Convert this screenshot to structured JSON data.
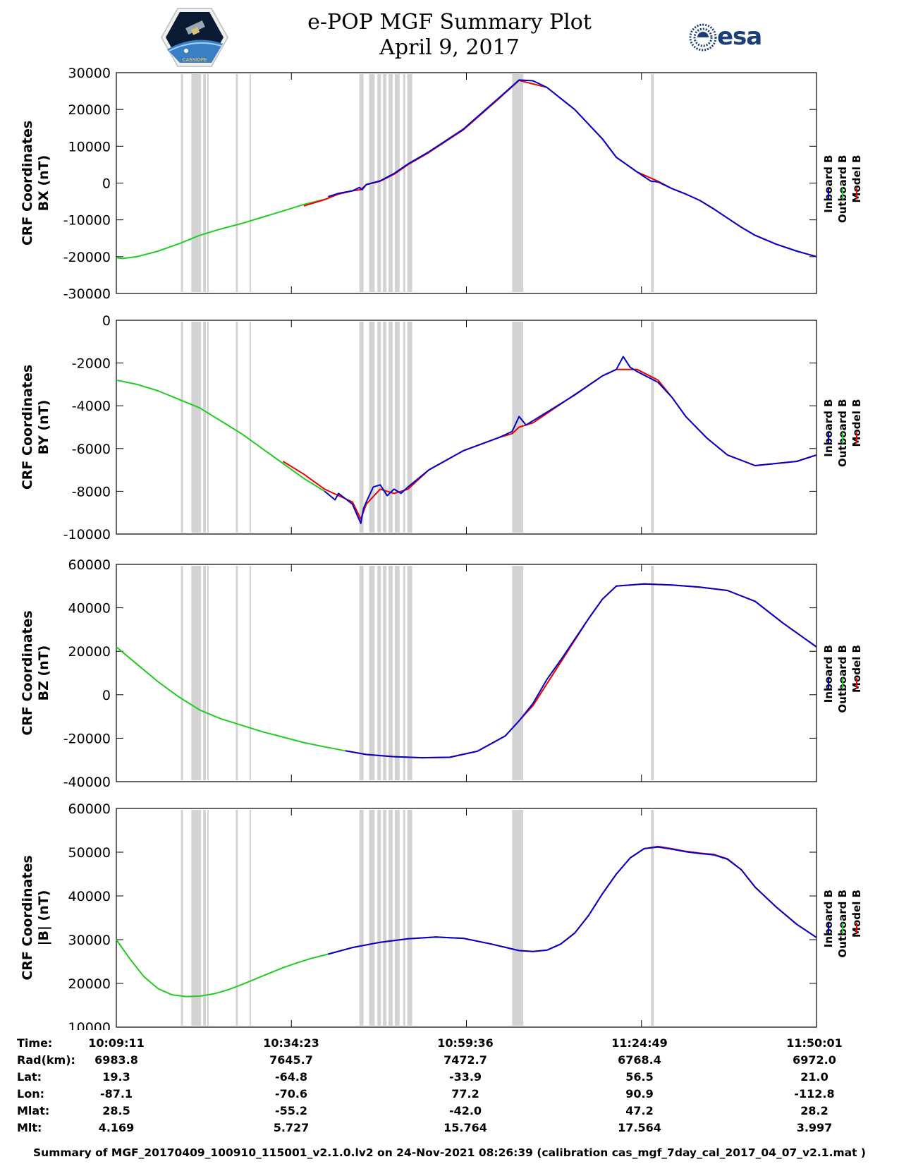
{
  "header": {
    "title_line1": "e-POP MGF Summary Plot",
    "title_line2": "April 9, 2017",
    "logo_left_text": "CASSIOPE",
    "logo_right_text": "esa"
  },
  "legend": {
    "labels": [
      "Inboard B",
      "Outboard B",
      "Model B"
    ],
    "colors": [
      "#0000cc",
      "#22cc22",
      "#ee0000"
    ]
  },
  "shaded_intervals_min": [
    [
      9.3,
      9.6
    ],
    [
      10.8,
      12.2
    ],
    [
      12.5,
      12.9
    ],
    [
      13.1,
      13.3
    ],
    [
      17.2,
      17.5
    ],
    [
      19.2,
      19.3
    ],
    [
      35.0,
      35.6
    ],
    [
      36.4,
      37.2
    ],
    [
      37.6,
      38.1
    ],
    [
      38.4,
      38.9
    ],
    [
      39.2,
      39.8
    ],
    [
      40.1,
      40.8
    ],
    [
      41.3,
      41.6
    ],
    [
      41.9,
      42.6
    ],
    [
      57.0,
      58.6
    ],
    [
      77.0,
      77.4
    ]
  ],
  "chart_data": [
    {
      "type": "line",
      "ylabel_line1": "CRF Coordinates",
      "ylabel_line2": "BX (nT)",
      "ylim": [
        -30000,
        30000
      ],
      "yticks": [
        30000,
        20000,
        10000,
        0,
        -10000,
        -20000,
        -30000
      ],
      "ytick_labels": [
        "30000",
        "20000",
        "10000",
        "0",
        "-10000",
        "-20000",
        "-30000"
      ],
      "xlim_min": [
        0,
        100.83
      ],
      "series": [
        {
          "name": "Outboard B",
          "color": "#22cc22",
          "x": [
            0,
            1,
            3,
            6,
            9,
            12,
            15,
            18,
            21,
            24,
            27,
            30.5
          ],
          "y": [
            -20300,
            -20500,
            -20000,
            -18500,
            -16500,
            -14200,
            -12500,
            -11000,
            -9300,
            -7600,
            -5800,
            -4200
          ]
        },
        {
          "name": "Model B",
          "color": "#ee0000",
          "x": [
            27,
            30,
            32,
            34,
            35.2,
            36,
            38,
            40,
            42,
            45,
            50,
            55,
            58,
            62,
            66,
            70,
            72,
            75,
            78,
            80,
            82,
            84,
            86,
            88,
            90,
            92,
            95,
            98,
            100.83
          ],
          "y": [
            -6200,
            -4500,
            -3000,
            -2100,
            -1800,
            -400,
            500,
            2400,
            5000,
            8300,
            14500,
            22800,
            27900,
            26000,
            20000,
            12000,
            7000,
            3000,
            500,
            -1500,
            -3000,
            -4700,
            -7000,
            -9500,
            -12000,
            -14200,
            -16600,
            -18500,
            -20000
          ]
        },
        {
          "name": "Inboard B",
          "color": "#0000cc",
          "x": [
            30.5,
            32,
            34,
            35,
            35.4,
            36,
            38,
            40,
            42,
            45,
            50,
            55,
            58,
            60,
            62,
            66,
            70,
            72,
            75,
            77,
            78,
            80,
            82,
            84,
            86,
            88,
            90,
            92,
            95,
            98,
            100.83
          ],
          "y": [
            -3700,
            -2800,
            -2100,
            -1200,
            -1800,
            -400,
            600,
            2600,
            5200,
            8500,
            14700,
            23000,
            28000,
            27800,
            26000,
            20000,
            12000,
            7000,
            3000,
            500,
            300,
            -1500,
            -3000,
            -4700,
            -7000,
            -9500,
            -12000,
            -14200,
            -16600,
            -18500,
            -20000
          ]
        }
      ]
    },
    {
      "type": "line",
      "ylabel_line1": "CRF Coordinates",
      "ylabel_line2": "BY (nT)",
      "ylim": [
        -10000,
        0
      ],
      "yticks": [
        0,
        -2000,
        -4000,
        -6000,
        -8000,
        -10000
      ],
      "ytick_labels": [
        "0",
        "-2000",
        "-4000",
        "-6000",
        "-8000",
        "-10000"
      ],
      "xlim_min": [
        0,
        100.83
      ],
      "series": [
        {
          "name": "Outboard B",
          "color": "#22cc22",
          "x": [
            0,
            3,
            6,
            9,
            12,
            13.5,
            15,
            18,
            21,
            24,
            27,
            30
          ],
          "y": [
            -2800,
            -3000,
            -3300,
            -3700,
            -4100,
            -4400,
            -4700,
            -5300,
            -6000,
            -6700,
            -7400,
            -8000
          ]
        },
        {
          "name": "Model B",
          "color": "#ee0000",
          "x": [
            24,
            27,
            30,
            32,
            34,
            35.2,
            36,
            38,
            40,
            42,
            45,
            50,
            55,
            57,
            58,
            60,
            65,
            70,
            72,
            75,
            78,
            80,
            82,
            85,
            88,
            92,
            95,
            98,
            100.83
          ],
          "y": [
            -6600,
            -7200,
            -7900,
            -8200,
            -8500,
            -9300,
            -8600,
            -7900,
            -8100,
            -7900,
            -7000,
            -6100,
            -5500,
            -5300,
            -5000,
            -4800,
            -3700,
            -2600,
            -2300,
            -2300,
            -2800,
            -3600,
            -4500,
            -5500,
            -6300,
            -6800,
            -6700,
            -6600,
            -6300
          ]
        },
        {
          "name": "Inboard B",
          "color": "#0000cc",
          "x": [
            30,
            31.5,
            32,
            34,
            35.2,
            35.6,
            36,
            37,
            38,
            39,
            40,
            41,
            42,
            45,
            50,
            55,
            57,
            58,
            59,
            62,
            66,
            70,
            72,
            73,
            74,
            75,
            78,
            80,
            82,
            85,
            88,
            92,
            95,
            98,
            100.83
          ],
          "y": [
            -8000,
            -8400,
            -8100,
            -8600,
            -9500,
            -8800,
            -8500,
            -7800,
            -7700,
            -8200,
            -7900,
            -8100,
            -7800,
            -7000,
            -6100,
            -5500,
            -5200,
            -4500,
            -4900,
            -4300,
            -3500,
            -2600,
            -2300,
            -1700,
            -2200,
            -2400,
            -2900,
            -3600,
            -4500,
            -5500,
            -6300,
            -6800,
            -6700,
            -6600,
            -6300
          ]
        }
      ]
    },
    {
      "type": "line",
      "ylabel_line1": "CRF Coordinates",
      "ylabel_line2": "BZ (nT)",
      "ylim": [
        -40000,
        60000
      ],
      "yticks": [
        60000,
        40000,
        20000,
        0,
        -20000,
        -40000
      ],
      "ytick_labels": [
        "60000",
        "40000",
        "20000",
        "0",
        "-20000",
        "-40000"
      ],
      "xlim_min": [
        0,
        100.83
      ],
      "series": [
        {
          "name": "Outboard B",
          "color": "#22cc22",
          "x": [
            0,
            3,
            6,
            9,
            12,
            15,
            18,
            21,
            24,
            27,
            30,
            33
          ],
          "y": [
            22000,
            14000,
            6000,
            -1000,
            -7000,
            -11000,
            -14000,
            -17000,
            -19500,
            -22000,
            -24000,
            -25800
          ]
        },
        {
          "name": "Model B",
          "color": "#ee0000",
          "x": [
            33,
            36,
            40,
            44,
            48,
            52,
            56,
            60,
            64,
            68,
            70,
            72,
            76,
            80,
            84,
            88,
            92,
            96,
            100.83
          ],
          "y": [
            -25800,
            -27500,
            -28500,
            -29000,
            -28800,
            -26000,
            -19000,
            -5000,
            15000,
            35000,
            44000,
            50000,
            51000,
            50500,
            49500,
            48000,
            43000,
            33000,
            22000
          ]
        },
        {
          "name": "Inboard B",
          "color": "#0000cc",
          "x": [
            33,
            36,
            40,
            44,
            48,
            52,
            56,
            58,
            60,
            62,
            64,
            68,
            70,
            72,
            76,
            80,
            84,
            88,
            92,
            96,
            100.83
          ],
          "y": [
            -25800,
            -27500,
            -28500,
            -29000,
            -28800,
            -26000,
            -19000,
            -12000,
            -4000,
            7000,
            16000,
            35000,
            44000,
            50000,
            51000,
            50500,
            49500,
            48000,
            43000,
            33000,
            22000
          ]
        }
      ]
    },
    {
      "type": "line",
      "ylabel_line1": "CRF Coordinates",
      "ylabel_line2": "|B| (nT)",
      "ylim": [
        10000,
        60000
      ],
      "yticks": [
        60000,
        50000,
        40000,
        30000,
        20000,
        10000
      ],
      "ytick_labels": [
        "60000",
        "50000",
        "40000",
        "30000",
        "20000",
        "10000"
      ],
      "xlim_min": [
        0,
        100.83
      ],
      "series": [
        {
          "name": "Outboard B",
          "color": "#22cc22",
          "x": [
            0,
            2,
            4,
            6,
            8,
            10,
            12,
            14,
            16,
            18,
            20,
            22,
            24,
            26,
            28,
            30.5
          ],
          "y": [
            30000,
            25500,
            21500,
            18800,
            17400,
            17000,
            17100,
            17600,
            18500,
            19700,
            21000,
            22300,
            23600,
            24700,
            25700,
            26700
          ]
        },
        {
          "name": "Model B",
          "color": "#ee0000",
          "x": [
            30.5,
            34,
            38,
            42,
            46,
            50,
            54,
            58,
            60,
            62,
            64,
            66,
            68,
            70,
            72,
            74,
            76,
            78,
            80,
            82,
            84,
            86,
            88,
            90,
            92,
            95,
            98,
            100.83
          ],
          "y": [
            26700,
            28200,
            29400,
            30200,
            30600,
            30300,
            29000,
            27500,
            27300,
            27600,
            29000,
            31500,
            35500,
            40500,
            45000,
            48700,
            50800,
            51300,
            50800,
            50200,
            49800,
            49500,
            48500,
            46000,
            42000,
            37500,
            33500,
            30500
          ]
        },
        {
          "name": "Inboard B",
          "color": "#0000cc",
          "x": [
            30.5,
            34,
            38,
            42,
            46,
            50,
            54,
            58,
            60,
            62,
            64,
            66,
            68,
            70,
            72,
            74,
            76,
            78,
            80,
            82,
            84,
            86,
            88,
            90,
            92,
            95,
            98,
            100.83
          ],
          "y": [
            26700,
            28200,
            29400,
            30200,
            30600,
            30300,
            29000,
            27500,
            27300,
            27600,
            29000,
            31500,
            35500,
            40500,
            45000,
            48700,
            50800,
            51200,
            50700,
            50100,
            49700,
            49400,
            48400,
            46000,
            42000,
            37500,
            33500,
            30500
          ]
        }
      ]
    }
  ],
  "ephemeris": {
    "row_labels": [
      "Time:",
      "Rad(km):",
      "Lat:",
      "Lon:",
      "Mlat:",
      "Mlt:"
    ],
    "columns": [
      {
        "values": [
          "10:09:11",
          "6983.8",
          "19.3",
          "-87.1",
          "28.5",
          "4.169"
        ]
      },
      {
        "values": [
          "10:34:23",
          "7645.7",
          "-64.8",
          "-70.6",
          "-55.2",
          "5.727"
        ]
      },
      {
        "values": [
          "10:59:36",
          "7472.7",
          "-33.9",
          "77.2",
          "-42.0",
          "15.764"
        ]
      },
      {
        "values": [
          "11:24:49",
          "6768.4",
          "56.5",
          "90.9",
          "47.2",
          "17.564"
        ]
      },
      {
        "values": [
          "11:50:01",
          "6972.0",
          "21.0",
          "-112.8",
          "28.2",
          "3.997"
        ]
      }
    ]
  },
  "footer": {
    "text": "Summary of MGF_20170409_100910_115001_v2.1.0.lv2 on 24-Nov-2021 08:26:39 (calibration cas_mgf_7day_cal_2017_04_07_v2.1.mat )"
  }
}
